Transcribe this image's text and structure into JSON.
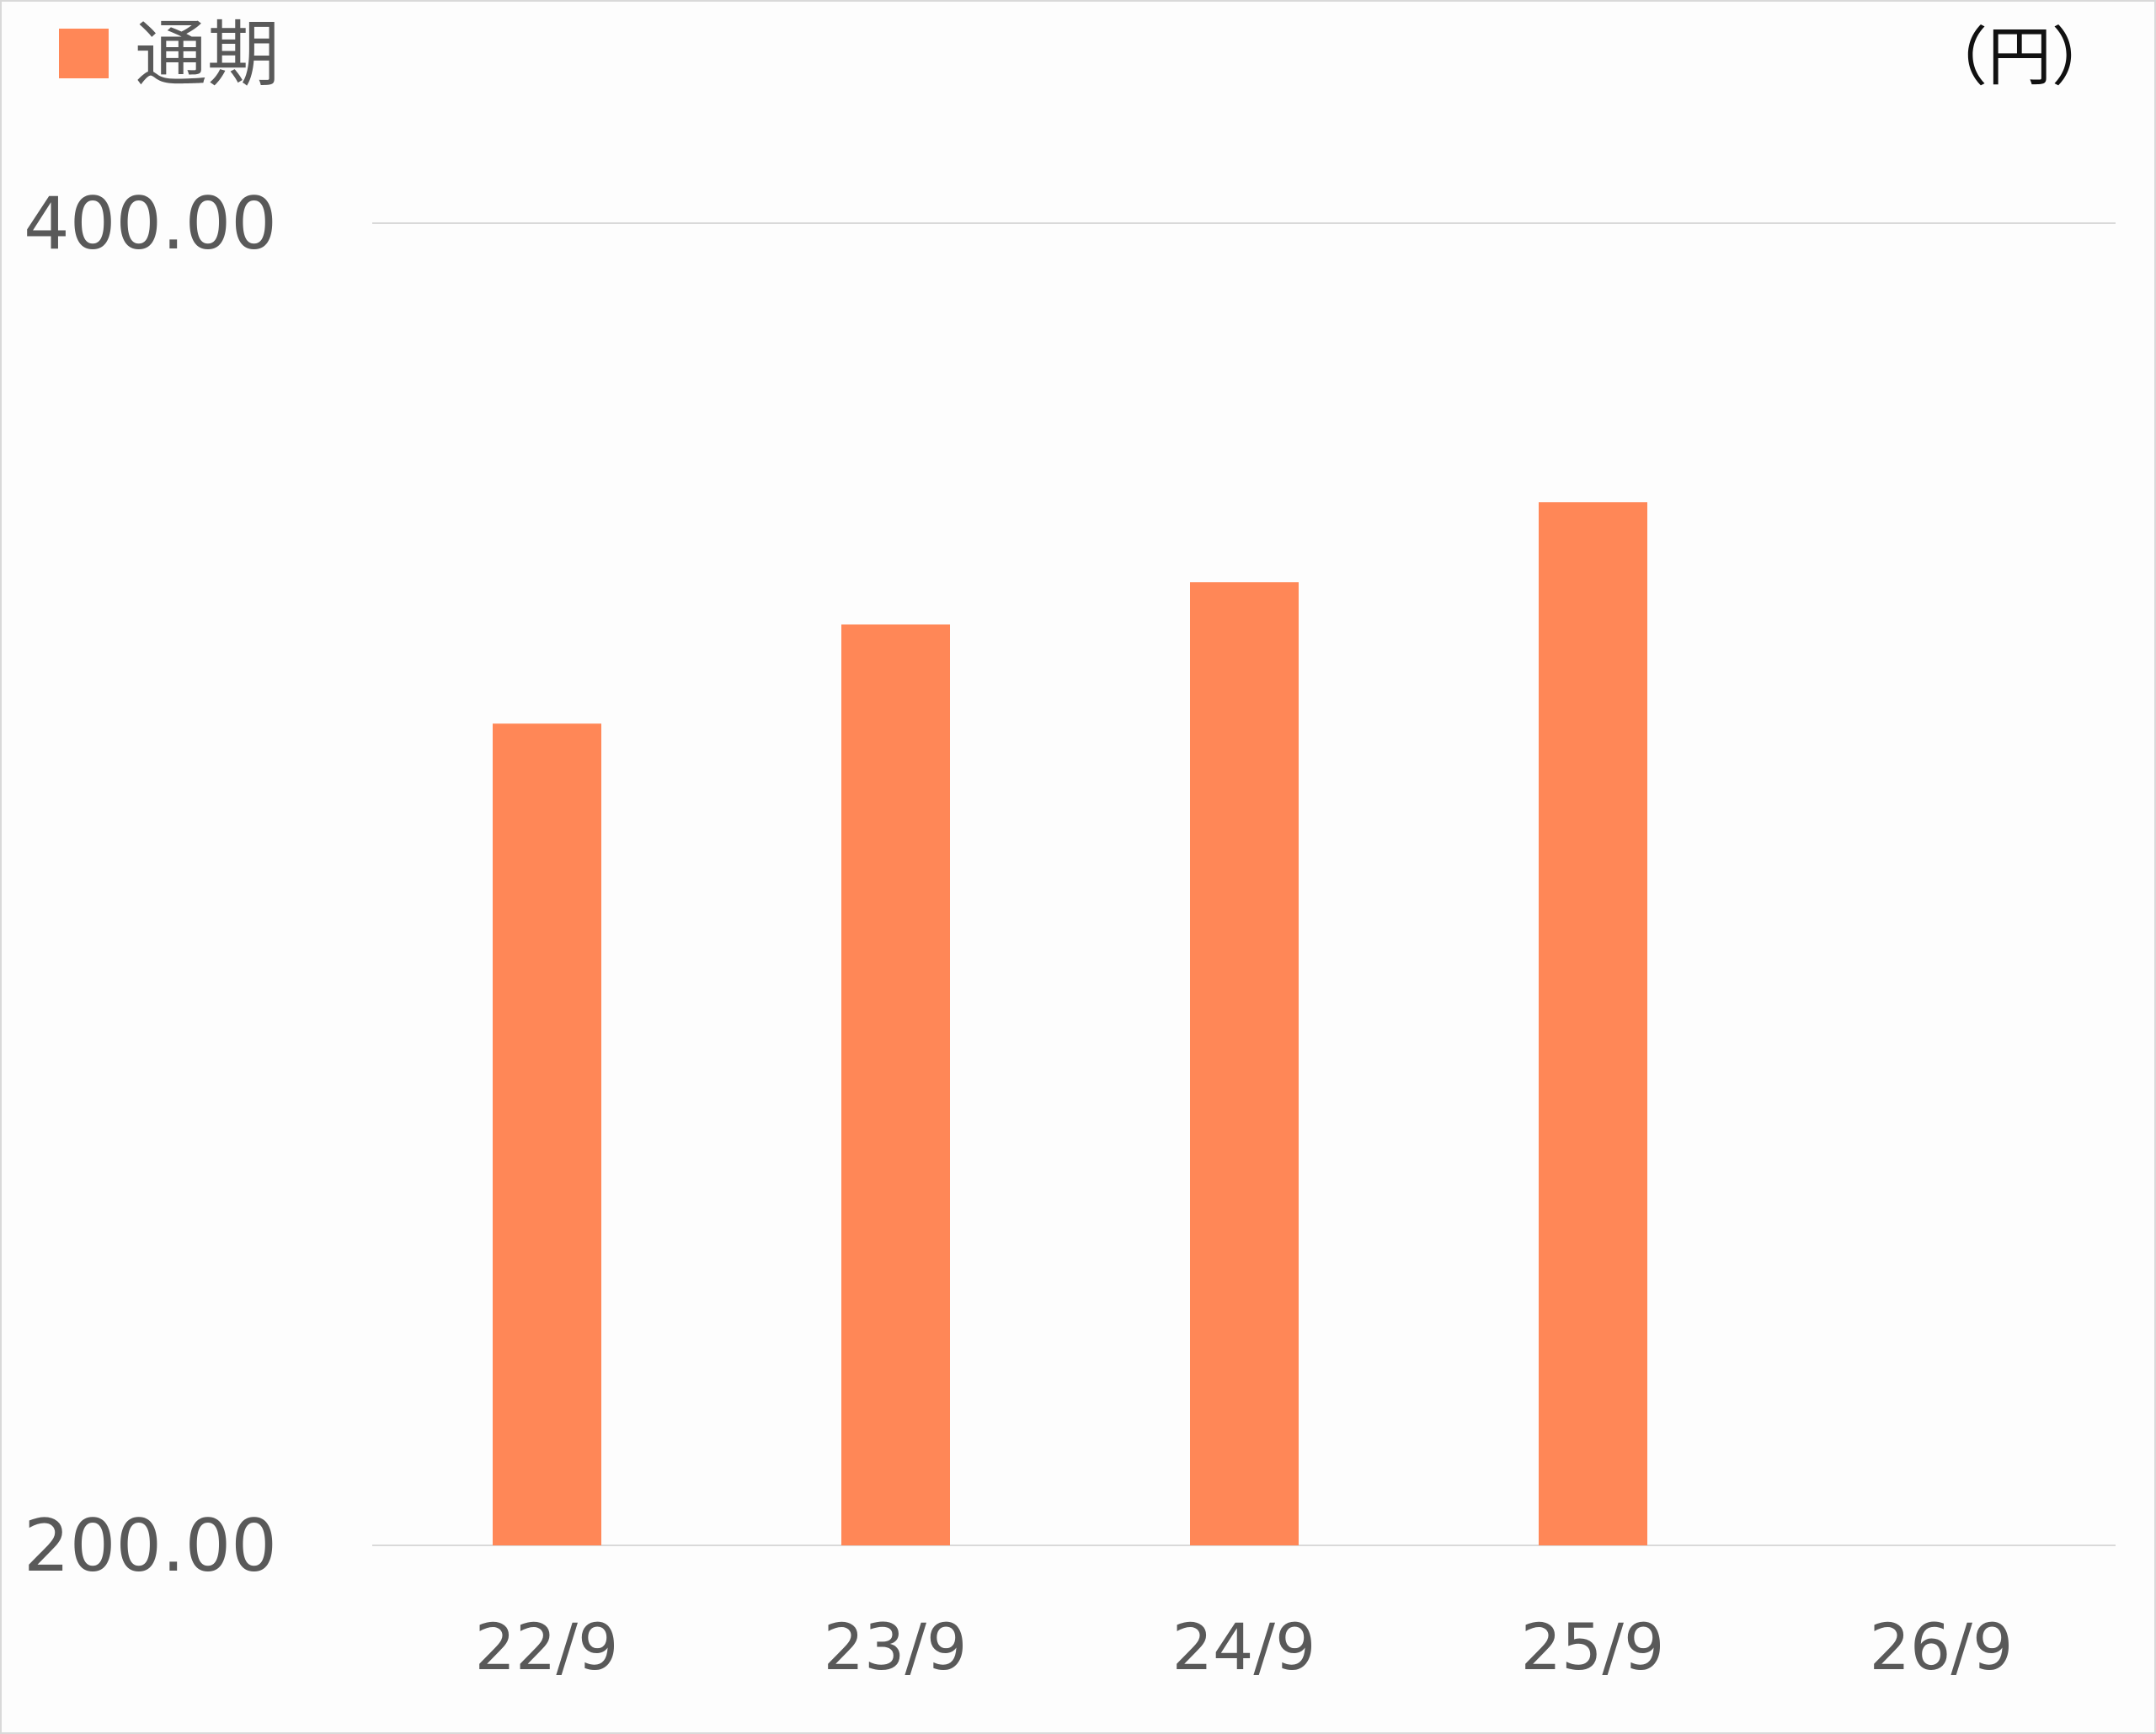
{
  "chart_data": {
    "type": "bar",
    "categories": [
      "22/9",
      "23/9",
      "24/9",
      "25/9",
      "26/9"
    ],
    "series": [
      {
        "name": "通期",
        "values": [
          324.3,
          339.3,
          345.7,
          357.8,
          null
        ],
        "color": "#ff8757"
      }
    ],
    "unit": "（円）",
    "ylim": [
      200,
      400
    ],
    "yticks": [
      "200.00",
      "400.00"
    ],
    "grid": true,
    "legend_position": "top-left"
  }
}
